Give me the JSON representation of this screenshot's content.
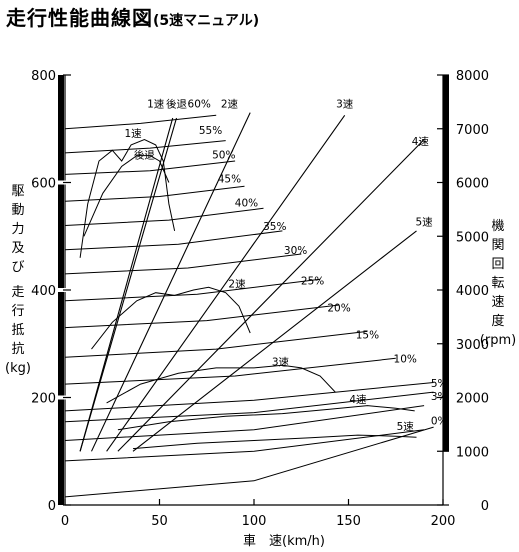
{
  "title": "走行性能曲線図",
  "subtitle": "(5速マニュアル)",
  "chart_data": {
    "type": "line",
    "title": "走行性能曲線図",
    "subtitle": "(5速マニュアル)",
    "xlabel": "車　速(km/h)",
    "ylabel_left": [
      "駆",
      "動",
      "力",
      "及",
      "び",
      "走",
      "行",
      "抵",
      "抗",
      "(kg)"
    ],
    "ylabel_right": [
      "機",
      "関",
      "回",
      "転",
      "速",
      "度",
      "(rpm)"
    ],
    "xlim": [
      0,
      200
    ],
    "ylim": [
      0,
      800
    ],
    "y2lim": [
      0,
      8000
    ],
    "xticks": [
      "0",
      "50",
      "100",
      "150",
      "200"
    ],
    "yticks": [
      "0",
      "200",
      "400",
      "600",
      "800"
    ],
    "y2ticks": [
      "0",
      "1000",
      "2000",
      "3000",
      "4000",
      "5000",
      "6000",
      "7000",
      "8000"
    ],
    "grid": false,
    "rpm_lines": [
      {
        "name": "1速",
        "x": [
          8,
          57
        ],
        "rpm": [
          1000,
          7200
        ]
      },
      {
        "name": "後退",
        "x": [
          8,
          59
        ],
        "rpm": [
          1000,
          7200
        ]
      },
      {
        "name": "2速",
        "x": [
          14,
          98
        ],
        "rpm": [
          1000,
          7300
        ]
      },
      {
        "name": "3速",
        "x": [
          22,
          148
        ],
        "rpm": [
          1000,
          7250
        ]
      },
      {
        "name": "4速",
        "x": [
          28,
          190
        ],
        "rpm": [
          1000,
          6800
        ]
      },
      {
        "name": "5速",
        "x": [
          36,
          186
        ],
        "rpm": [
          1000,
          5100
        ]
      }
    ],
    "tractive_force": [
      {
        "name": "1速",
        "x": [
          8,
          12,
          18,
          25,
          30,
          35,
          42,
          48,
          52,
          55,
          58
        ],
        "y": [
          460,
          560,
          640,
          660,
          640,
          670,
          680,
          670,
          640,
          560,
          510
        ]
      },
      {
        "name": "後退",
        "x": [
          10,
          20,
          30,
          38,
          45,
          50,
          55
        ],
        "y": [
          500,
          580,
          630,
          650,
          650,
          640,
          600
        ]
      },
      {
        "name": "2速",
        "x": [
          14,
          25,
          38,
          48,
          58,
          68,
          76,
          85,
          92,
          98
        ],
        "y": [
          290,
          340,
          380,
          395,
          390,
          400,
          405,
          395,
          370,
          320
        ]
      },
      {
        "name": "3速",
        "x": [
          22,
          40,
          60,
          80,
          100,
          115,
          125,
          135,
          143
        ],
        "y": [
          190,
          225,
          245,
          255,
          255,
          260,
          255,
          240,
          210
        ]
      },
      {
        "name": "4速",
        "x": [
          28,
          55,
          85,
          115,
          140,
          160,
          175,
          185
        ],
        "y": [
          140,
          155,
          165,
          170,
          178,
          185,
          180,
          175
        ]
      },
      {
        "name": "5速",
        "x": [
          36,
          70,
          100,
          130,
          155,
          175,
          186
        ],
        "y": [
          105,
          115,
          120,
          125,
          130,
          128,
          126
        ]
      }
    ],
    "resistance_curves": [
      {
        "name": "60%",
        "x": [
          0,
          40,
          80
        ],
        "y": [
          700,
          710,
          725
        ]
      },
      {
        "name": "55%",
        "x": [
          0,
          45,
          85
        ],
        "y": [
          655,
          664,
          678
        ]
      },
      {
        "name": "50%",
        "x": [
          0,
          45,
          90
        ],
        "y": [
          615,
          622,
          640
        ]
      },
      {
        "name": "45%",
        "x": [
          0,
          50,
          95
        ],
        "y": [
          565,
          574,
          593
        ]
      },
      {
        "name": "40%",
        "x": [
          0,
          55,
          105
        ],
        "y": [
          520,
          530,
          552
        ]
      },
      {
        "name": "35%",
        "x": [
          0,
          60,
          115
        ],
        "y": [
          475,
          485,
          510
        ]
      },
      {
        "name": "30%",
        "x": [
          0,
          65,
          125
        ],
        "y": [
          430,
          441,
          467
        ]
      },
      {
        "name": "25%",
        "x": [
          0,
          70,
          135
        ],
        "y": [
          380,
          392,
          420
        ]
      },
      {
        "name": "20%",
        "x": [
          0,
          75,
          145
        ],
        "y": [
          330,
          343,
          372
        ]
      },
      {
        "name": "15%",
        "x": [
          0,
          80,
          160
        ],
        "y": [
          275,
          290,
          323
        ]
      },
      {
        "name": "10%",
        "x": [
          0,
          90,
          175
        ],
        "y": [
          225,
          240,
          273
        ]
      },
      {
        "name": "5%",
        "x": [
          0,
          100,
          195
        ],
        "y": [
          175,
          195,
          228
        ]
      },
      {
        "name": "3%",
        "x": [
          0,
          100,
          195
        ],
        "y": [
          155,
          172,
          210
        ]
      },
      {
        "name": "0%",
        "x": [
          0,
          100,
          195
        ],
        "y": [
          15,
          45,
          145
        ]
      }
    ],
    "extra_curves": [
      {
        "x": [
          0,
          100,
          190
        ],
        "y": [
          120,
          140,
          185
        ]
      },
      {
        "x": [
          0,
          100,
          190
        ],
        "y": [
          82,
          100,
          140
        ]
      }
    ],
    "annotations": [
      {
        "text": "1速",
        "x": 48,
        "y": 740
      },
      {
        "text": "後退",
        "x": 59,
        "y": 740
      },
      {
        "text": "60%",
        "x": 71,
        "y": 740
      },
      {
        "text": "2速",
        "x": 87,
        "y": 740
      },
      {
        "text": "3速",
        "x": 148,
        "y": 740
      },
      {
        "text": "4速",
        "x": 188,
        "y": 670
      },
      {
        "text": "55%",
        "x": 77,
        "y": 690
      },
      {
        "text": "1速",
        "x": 36,
        "y": 685
      },
      {
        "text": "50%",
        "x": 84,
        "y": 645
      },
      {
        "text": "後退",
        "x": 42,
        "y": 645
      },
      {
        "text": "45%",
        "x": 87,
        "y": 600
      },
      {
        "text": "40%",
        "x": 96,
        "y": 555
      },
      {
        "text": "35%",
        "x": 111,
        "y": 512
      },
      {
        "text": "5速",
        "x": 190,
        "y": 520
      },
      {
        "text": "30%",
        "x": 122,
        "y": 467
      },
      {
        "text": "25%",
        "x": 131,
        "y": 410
      },
      {
        "text": "2速",
        "x": 91,
        "y": 405
      },
      {
        "text": "20%",
        "x": 145,
        "y": 360
      },
      {
        "text": "15%",
        "x": 160,
        "y": 310
      },
      {
        "text": "10%",
        "x": 180,
        "y": 265
      },
      {
        "text": "3速",
        "x": 114,
        "y": 260
      },
      {
        "text": "5%",
        "x": 198,
        "y": 220
      },
      {
        "text": "4速",
        "x": 155,
        "y": 190
      },
      {
        "text": "3%",
        "x": 198,
        "y": 195
      },
      {
        "text": "5速",
        "x": 180,
        "y": 140
      },
      {
        "text": "0%",
        "x": 198,
        "y": 150
      }
    ]
  }
}
